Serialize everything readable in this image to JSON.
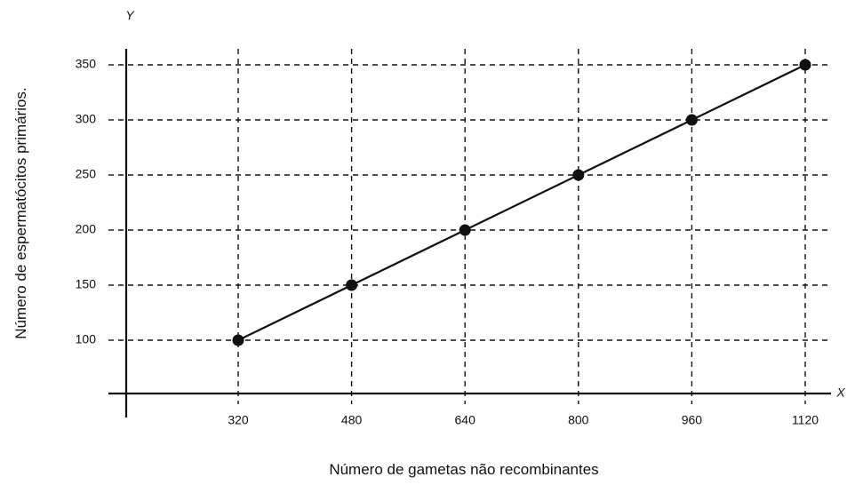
{
  "chart_data": {
    "type": "line",
    "xlabel": "Número de gametas não recombinantes",
    "ylabel": "Número de espermatócitos primários.",
    "x_axis_letter": "X",
    "y_axis_letter": "Y",
    "x": [
      320,
      480,
      640,
      800,
      960,
      1120
    ],
    "y": [
      100,
      150,
      200,
      250,
      300,
      350
    ],
    "x_ticks": [
      "320",
      "480",
      "640",
      "800",
      "960",
      "1120"
    ],
    "y_ticks": [
      "100",
      "150",
      "200",
      "250",
      "300",
      "350"
    ],
    "grid": true,
    "grid_style": "dashed",
    "color": "#111111"
  }
}
